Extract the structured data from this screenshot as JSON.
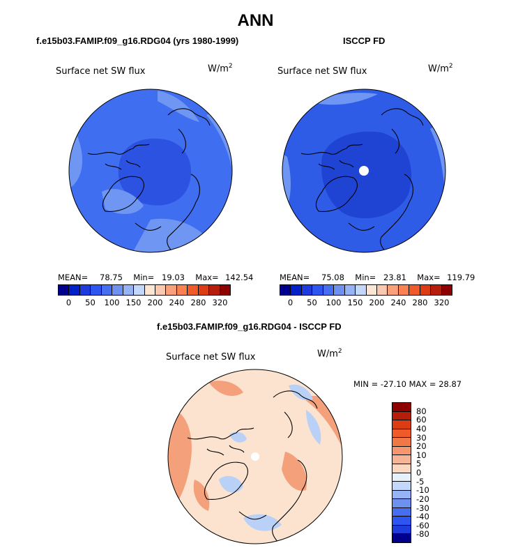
{
  "title": "ANN",
  "panels": {
    "model": {
      "title": "f.e15b03.FAMIP.f09_g16.RDG04 (yrs 1980-1999)",
      "plot_label": "Surface net SW flux",
      "units_base": "W/m",
      "units_exp": "2",
      "mean_label": "MEAN=",
      "mean": "78.75",
      "min_label": "Min=",
      "min": "19.03",
      "max_label": "Max=",
      "max": "142.54"
    },
    "obs": {
      "title": "ISCCP FD",
      "plot_label": "Surface net SW flux",
      "units_base": "W/m",
      "units_exp": "2",
      "mean_label": "MEAN=",
      "mean": "75.08",
      "min_label": "Min=",
      "min": "23.81",
      "max_label": "Max=",
      "max": "119.79"
    },
    "diff": {
      "title": "f.e15b03.FAMIP.f09_g16.RDG04 - ISCCP FD",
      "plot_label": "Surface net SW flux",
      "units_base": "W/m",
      "units_exp": "2",
      "minmax": "MIN = -27.10 MAX =  28.87"
    }
  },
  "colorbar_top": {
    "colors": [
      "#00008c",
      "#0020c8",
      "#1e3cdc",
      "#2d55f0",
      "#466ef0",
      "#6e91f0",
      "#96b4f5",
      "#c3d7fa",
      "#fae6d2",
      "#fac8af",
      "#faa078",
      "#fa8250",
      "#f05a28",
      "#dc3c14",
      "#b41e0a",
      "#8c0000"
    ],
    "tick_labels": [
      "0",
      "50",
      "100",
      "150",
      "200",
      "240",
      "280",
      "320"
    ]
  },
  "colorbar_diff": {
    "colors": [
      "#8c0000",
      "#b41e0a",
      "#dc3c14",
      "#f05a28",
      "#f07846",
      "#f5966e",
      "#f5b496",
      "#fad7be",
      "#e6f0fa",
      "#c3d7fa",
      "#96b4f5",
      "#6e91f0",
      "#466ef0",
      "#2d55f0",
      "#1e3cdc",
      "#00008c"
    ],
    "tick_labels": [
      "80",
      "60",
      "40",
      "30",
      "20",
      "10",
      "5",
      "0",
      "-5",
      "-10",
      "-20",
      "-30",
      "-40",
      "-60",
      "-80"
    ]
  },
  "map_colors": {
    "model_base": "#3f6ff0",
    "model_dark": "#2b52e0",
    "model_light": "#6f96f2",
    "obs_base": "#2f5ce6",
    "obs_dark": "#1f44d4",
    "obs_light": "#6f96f2",
    "diff_base": "#fbe3cf",
    "diff_warm": "#f4a07a",
    "diff_cool": "#b9d0f7",
    "coast": "#000000",
    "pole": "#ffffff"
  }
}
